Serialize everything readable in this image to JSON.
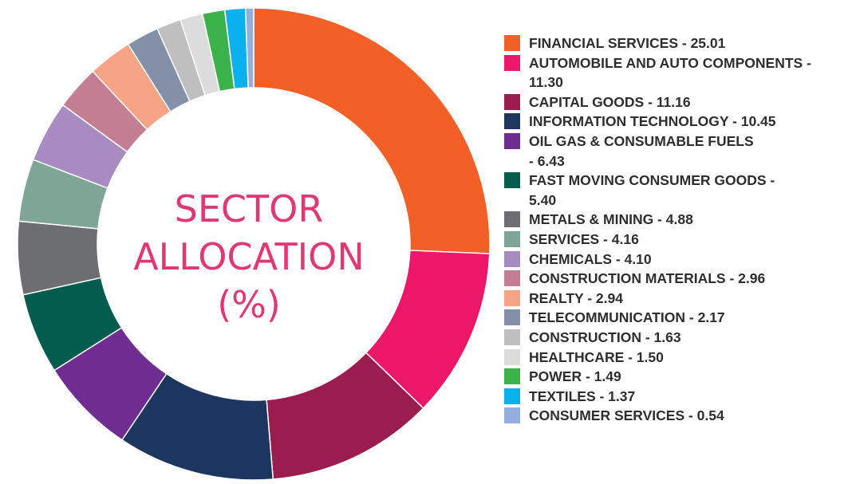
{
  "chart_data": {
    "type": "pie",
    "donut": true,
    "title_lines": [
      "SECTOR",
      "ALLOCATION",
      "(%)"
    ],
    "title_color": "#e03873",
    "legend_position": "right",
    "slices": [
      {
        "name": "FINANCIAL SERVICES",
        "value": 25.01,
        "label": "FINANCIAL SERVICES - 25.01",
        "color": "#f26028"
      },
      {
        "name": "AUTOMOBILE AND AUTO COMPONENTS",
        "value": 11.3,
        "label": "AUTOMOBILE AND AUTO COMPONENTS -\n11.30",
        "color": "#ec1768"
      },
      {
        "name": "CAPITAL GOODS",
        "value": 11.16,
        "label": "CAPITAL GOODS - 11.16",
        "color": "#9b1c4e"
      },
      {
        "name": "INFORMATION TECHNOLOGY",
        "value": 10.45,
        "label": "INFORMATION TECHNOLOGY - 10.45",
        "color": "#1c365f"
      },
      {
        "name": "OIL GAS & CONSUMABLE FUELS",
        "value": 6.43,
        "label": "OIL GAS & CONSUMABLE FUELS\n- 6.43",
        "color": "#6f2c91"
      },
      {
        "name": "FAST MOVING CONSUMER GOODS",
        "value": 5.4,
        "label": "FAST MOVING CONSUMER GOODS -\n5.40",
        "color": "#025d4e"
      },
      {
        "name": "METALS & MINING",
        "value": 4.88,
        "label": "METALS & MINING - 4.88",
        "color": "#6d6e71"
      },
      {
        "name": "SERVICES",
        "value": 4.16,
        "label": "SERVICES - 4.16",
        "color": "#7ea596"
      },
      {
        "name": "CHEMICALS",
        "value": 4.1,
        "label": "CHEMICALS - 4.10",
        "color": "#a78bc1"
      },
      {
        "name": "CONSTRUCTION MATERIALS",
        "value": 2.96,
        "label": "CONSTRUCTION MATERIALS - 2.96",
        "color": "#c47e94"
      },
      {
        "name": "REALTY",
        "value": 2.94,
        "label": "REALTY - 2.94",
        "color": "#f6a485"
      },
      {
        "name": "TELECOMMUNICATION",
        "value": 2.17,
        "label": "TELECOMMUNICATION - 2.17",
        "color": "#8390a8"
      },
      {
        "name": "CONSTRUCTION",
        "value": 1.63,
        "label": "CONSTRUCTION - 1.63",
        "color": "#bfbfbf"
      },
      {
        "name": "HEALTHCARE",
        "value": 1.5,
        "label": "HEALTHCARE - 1.50",
        "color": "#dcdcdc"
      },
      {
        "name": "POWER",
        "value": 1.49,
        "label": "POWER - 1.49",
        "color": "#3bb34a"
      },
      {
        "name": "TEXTILES",
        "value": 1.37,
        "label": "TEXTILES - 1.37",
        "color": "#0bb1ec"
      },
      {
        "name": "CONSUMER SERVICES",
        "value": 0.54,
        "label": "CONSUMER SERVICES - 0.54",
        "color": "#95aee0"
      }
    ]
  }
}
